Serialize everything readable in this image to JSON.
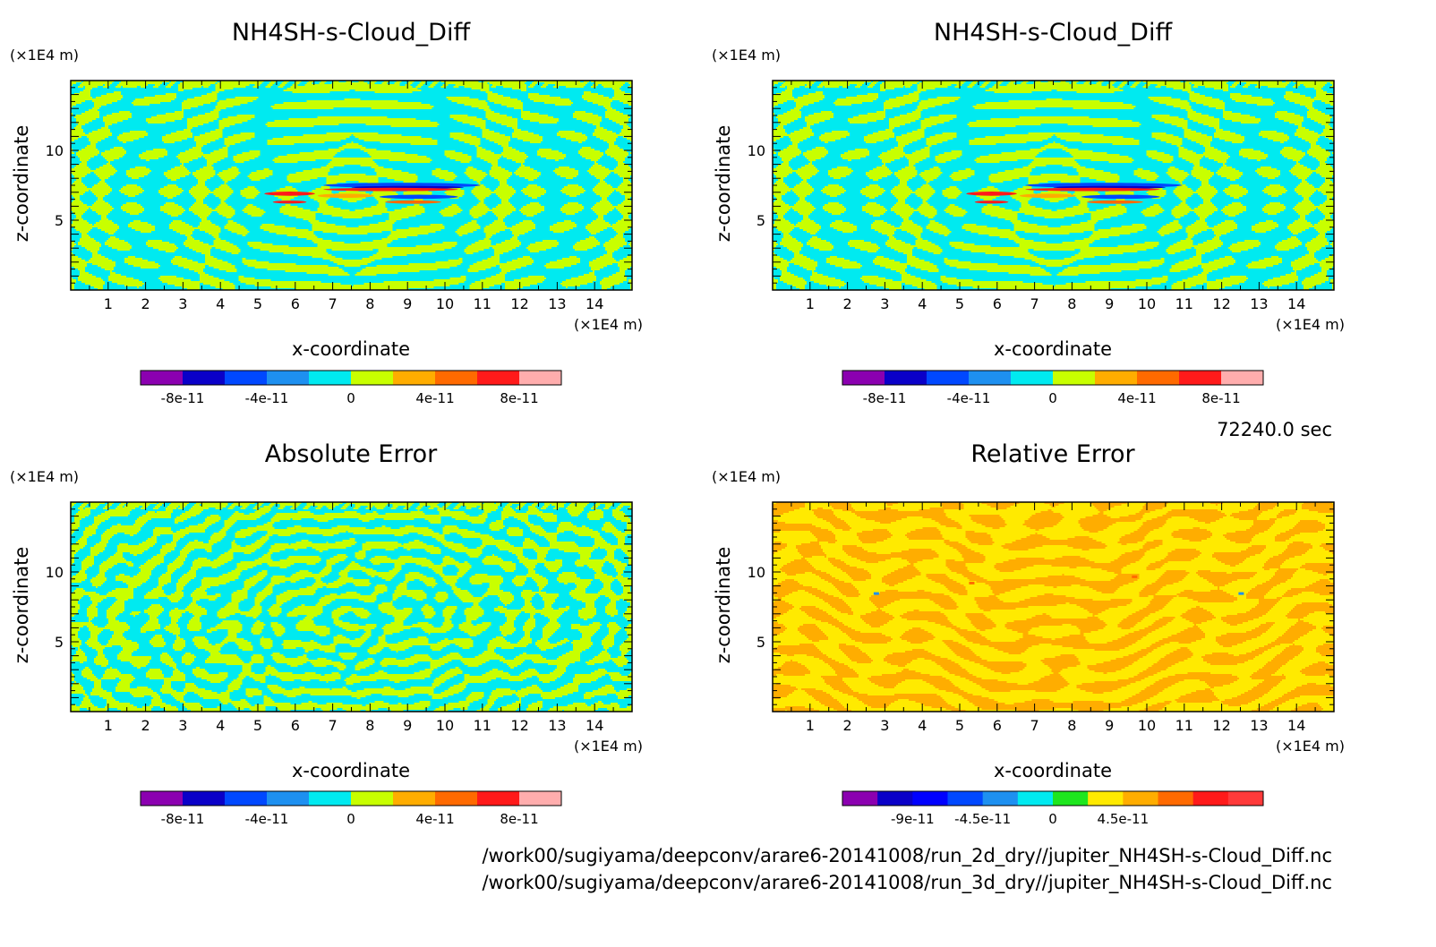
{
  "time_label": "72240.0 sec",
  "file_paths": [
    "/work00/sugiyama/deepconv/arare6-20141008/run_2d_dry//jupiter_NH4SH-s-Cloud_Diff.nc",
    "/work00/sugiyama/deepconv/arare6-20141008/run_3d_dry//jupiter_NH4SH-s-Cloud_Diff.nc"
  ],
  "colors": {
    "low": "#00eaf0",
    "high": "#c8ff00",
    "orange": "#ffad00",
    "yellow": "#ffea00"
  },
  "chart_data": [
    {
      "type": "heatmap",
      "title": "NH4SH-s-Cloud_Diff",
      "xlabel": "x-coordinate",
      "ylabel": "z-coordinate",
      "x_unit": "(×1E4 m)",
      "y_unit": "(×1E4 m)",
      "xlim": [
        0,
        15
      ],
      "ylim": [
        0,
        15
      ],
      "x_ticks": [
        "1",
        "2",
        "3",
        "4",
        "5",
        "6",
        "7",
        "8",
        "9",
        "10",
        "11",
        "12",
        "13",
        "14"
      ],
      "y_ticks": [
        "5",
        "10"
      ],
      "pattern": "contour",
      "colorbar": {
        "colors": [
          "#8b00b0",
          "#0a00c8",
          "#0048ff",
          "#1e90f0",
          "#00eaf0",
          "#c8ff00",
          "#ffad00",
          "#ff6a00",
          "#ff1a1a",
          "#ffadad"
        ],
        "tick_labels": [
          "-8e-11",
          "-4e-11",
          "0",
          "4e-11",
          "8e-11"
        ]
      }
    },
    {
      "type": "heatmap",
      "title": "NH4SH-s-Cloud_Diff",
      "xlabel": "x-coordinate",
      "ylabel": "z-coordinate",
      "x_unit": "(×1E4 m)",
      "y_unit": "(×1E4 m)",
      "xlim": [
        0,
        15
      ],
      "ylim": [
        0,
        15
      ],
      "x_ticks": [
        "1",
        "2",
        "3",
        "4",
        "5",
        "6",
        "7",
        "8",
        "9",
        "10",
        "11",
        "12",
        "13",
        "14"
      ],
      "y_ticks": [
        "5",
        "10"
      ],
      "pattern": "contour",
      "colorbar": {
        "colors": [
          "#8b00b0",
          "#0a00c8",
          "#0048ff",
          "#1e90f0",
          "#00eaf0",
          "#c8ff00",
          "#ffad00",
          "#ff6a00",
          "#ff1a1a",
          "#ffadad"
        ],
        "tick_labels": [
          "-8e-11",
          "-4e-11",
          "0",
          "4e-11",
          "8e-11"
        ]
      }
    },
    {
      "type": "heatmap",
      "title": "Absolute Error",
      "xlabel": "x-coordinate",
      "ylabel": "z-coordinate",
      "x_unit": "(×1E4 m)",
      "y_unit": "(×1E4 m)",
      "xlim": [
        0,
        15
      ],
      "ylim": [
        0,
        15
      ],
      "x_ticks": [
        "1",
        "2",
        "3",
        "4",
        "5",
        "6",
        "7",
        "8",
        "9",
        "10",
        "11",
        "12",
        "13",
        "14"
      ],
      "y_ticks": [
        "5",
        "10"
      ],
      "pattern": "noise",
      "colorbar": {
        "colors": [
          "#8b00b0",
          "#0a00c8",
          "#0048ff",
          "#1e90f0",
          "#00eaf0",
          "#c8ff00",
          "#ffad00",
          "#ff6a00",
          "#ff1a1a",
          "#ffadad"
        ],
        "tick_labels": [
          "-8e-11",
          "-4e-11",
          "0",
          "4e-11",
          "8e-11"
        ]
      }
    },
    {
      "type": "heatmap",
      "title": "Relative Error",
      "xlabel": "x-coordinate",
      "ylabel": "z-coordinate",
      "x_unit": "(×1E4 m)",
      "y_unit": "(×1E4 m)",
      "xlim": [
        0,
        15
      ],
      "ylim": [
        0,
        15
      ],
      "x_ticks": [
        "1",
        "2",
        "3",
        "4",
        "5",
        "6",
        "7",
        "8",
        "9",
        "10",
        "11",
        "12",
        "13",
        "14"
      ],
      "y_ticks": [
        "5",
        "10"
      ],
      "pattern": "relative",
      "colorbar": {
        "colors": [
          "#8b00b0",
          "#0a00c8",
          "#0000ff",
          "#0048ff",
          "#1e90f0",
          "#00eaf0",
          "#1ee61e",
          "#ffea00",
          "#ffad00",
          "#ff6a00",
          "#ff1a1a",
          "#ff3a3a"
        ],
        "tick_labels": [
          "-9e-11",
          "-4.5e-11",
          "0",
          "4.5e-11"
        ]
      }
    }
  ]
}
